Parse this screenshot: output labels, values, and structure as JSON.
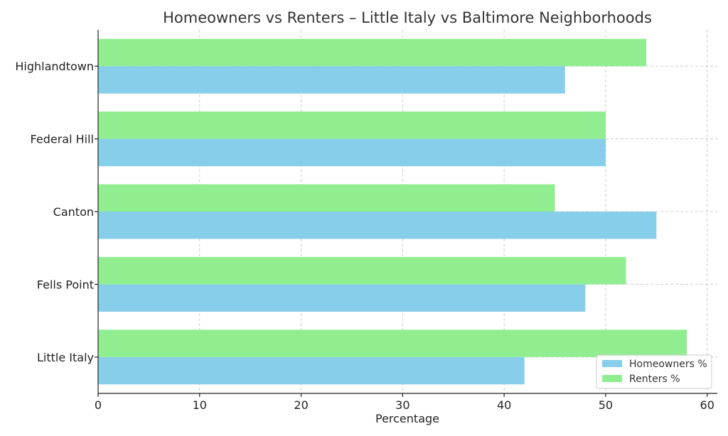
{
  "chart_data": {
    "type": "bar",
    "orientation": "horizontal",
    "title": "Homeowners vs Renters – Little Italy vs Baltimore Neighborhoods",
    "xlabel": "Percentage",
    "ylabel": "",
    "categories": [
      "Little Italy",
      "Fells Point",
      "Canton",
      "Federal Hill",
      "Highlandtown"
    ],
    "series": [
      {
        "name": "Homeowners %",
        "color": "#87CEEB",
        "values": [
          42,
          48,
          55,
          50,
          46
        ]
      },
      {
        "name": "Renters %",
        "color": "#90EE90",
        "values": [
          58,
          52,
          45,
          50,
          54
        ]
      }
    ],
    "xlim": [
      0,
      61
    ],
    "xticks": [
      0,
      10,
      20,
      30,
      40,
      50,
      60
    ],
    "grid": true,
    "legend": "bottom-right"
  }
}
